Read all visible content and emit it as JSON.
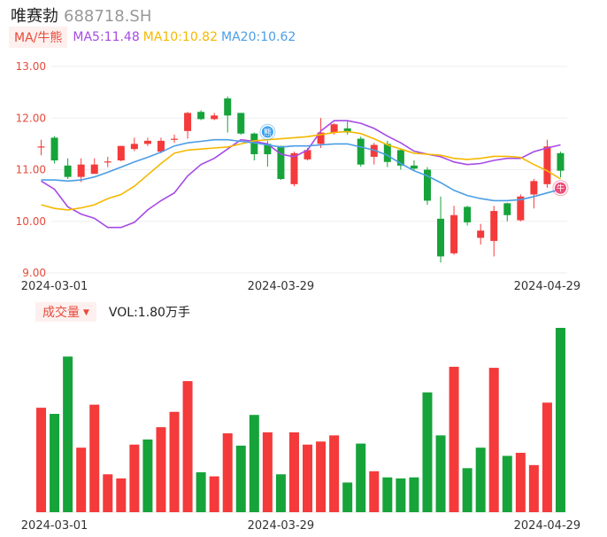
{
  "header": {
    "name": "唯赛勃",
    "code": "688718.SH"
  },
  "ma_legend": {
    "tab_label": "MA/牛熊",
    "items": [
      {
        "label": "MA5:11.48",
        "color": "#a64ae6"
      },
      {
        "label": "MA10:10.82",
        "color": "#f5b800"
      },
      {
        "label": "MA20:10.62",
        "color": "#4b9de6"
      }
    ]
  },
  "volume_legend": {
    "tab_label": "成交量",
    "value_label": "VOL:1.80万手"
  },
  "badges": {
    "bear": "熊",
    "bull": "牛"
  },
  "colors": {
    "up": "#f43a3a",
    "down": "#16a33a",
    "grid": "#eeeeee",
    "axis_text": "#e64a3b",
    "date_text": "#333333"
  },
  "chart_data": [
    {
      "type": "candlestick",
      "title": "",
      "y_ticks": [
        "13.00",
        "12.00",
        "11.00",
        "10.00",
        "9.00"
      ],
      "ylim": [
        9.0,
        13.0
      ],
      "x_ticks": [
        {
          "label": "2024-03-01",
          "index": 1
        },
        {
          "label": "2024-03-29",
          "index": 18
        },
        {
          "label": "2024-04-29",
          "index": 38
        }
      ],
      "candles": [
        {
          "o": 11.45,
          "c": 11.45,
          "h": 11.58,
          "l": 11.28
        },
        {
          "o": 11.62,
          "c": 11.18,
          "h": 11.65,
          "l": 11.12
        },
        {
          "o": 11.08,
          "c": 10.86,
          "h": 11.22,
          "l": 10.82
        },
        {
          "o": 10.86,
          "c": 11.1,
          "h": 11.22,
          "l": 10.76
        },
        {
          "o": 10.92,
          "c": 11.1,
          "h": 11.22,
          "l": 10.92
        },
        {
          "o": 11.16,
          "c": 11.16,
          "h": 11.25,
          "l": 11.05
        },
        {
          "o": 11.18,
          "c": 11.46,
          "h": 11.46,
          "l": 11.16
        },
        {
          "o": 11.4,
          "c": 11.5,
          "h": 11.62,
          "l": 11.36
        },
        {
          "o": 11.5,
          "c": 11.56,
          "h": 11.62,
          "l": 11.46
        },
        {
          "o": 11.35,
          "c": 11.56,
          "h": 11.62,
          "l": 11.32
        },
        {
          "o": 11.6,
          "c": 11.6,
          "h": 11.68,
          "l": 11.52
        },
        {
          "o": 11.75,
          "c": 12.1,
          "h": 12.12,
          "l": 11.6
        },
        {
          "o": 12.12,
          "c": 11.98,
          "h": 12.15,
          "l": 11.96
        },
        {
          "o": 11.98,
          "c": 12.05,
          "h": 12.1,
          "l": 11.96
        },
        {
          "o": 12.38,
          "c": 12.05,
          "h": 12.42,
          "l": 11.72
        },
        {
          "o": 12.1,
          "c": 11.7,
          "h": 12.1,
          "l": 11.68
        },
        {
          "o": 11.7,
          "c": 11.3,
          "h": 11.72,
          "l": 11.18
        },
        {
          "o": 11.5,
          "c": 11.3,
          "h": 11.56,
          "l": 11.06
        },
        {
          "o": 11.46,
          "c": 10.82,
          "h": 11.46,
          "l": 10.8
        },
        {
          "o": 10.72,
          "c": 11.32,
          "h": 11.35,
          "l": 10.68
        },
        {
          "o": 11.2,
          "c": 11.38,
          "h": 11.42,
          "l": 11.18
        },
        {
          "o": 11.5,
          "c": 11.72,
          "h": 12.0,
          "l": 11.42
        },
        {
          "o": 11.72,
          "c": 11.88,
          "h": 11.9,
          "l": 11.68
        },
        {
          "o": 11.8,
          "c": 11.72,
          "h": 11.96,
          "l": 11.68
        },
        {
          "o": 11.6,
          "c": 11.1,
          "h": 11.64,
          "l": 11.06
        },
        {
          "o": 11.25,
          "c": 11.48,
          "h": 11.52,
          "l": 11.1
        },
        {
          "o": 11.5,
          "c": 11.15,
          "h": 11.56,
          "l": 11.05
        },
        {
          "o": 11.38,
          "c": 11.08,
          "h": 11.4,
          "l": 11.0
        },
        {
          "o": 11.08,
          "c": 11.02,
          "h": 11.18,
          "l": 10.98
        },
        {
          "o": 11.0,
          "c": 10.4,
          "h": 11.05,
          "l": 10.32
        },
        {
          "o": 10.05,
          "c": 9.32,
          "h": 10.48,
          "l": 9.2
        },
        {
          "o": 9.38,
          "c": 10.12,
          "h": 10.3,
          "l": 9.35
        },
        {
          "o": 10.28,
          "c": 9.98,
          "h": 10.3,
          "l": 9.92
        },
        {
          "o": 9.68,
          "c": 9.82,
          "h": 9.95,
          "l": 9.55
        },
        {
          "o": 9.62,
          "c": 10.2,
          "h": 10.3,
          "l": 9.32
        },
        {
          "o": 10.35,
          "c": 10.12,
          "h": 10.36,
          "l": 10.0
        },
        {
          "o": 10.02,
          "c": 10.48,
          "h": 10.52,
          "l": 10.0
        },
        {
          "o": 10.52,
          "c": 10.78,
          "h": 10.82,
          "l": 10.25
        },
        {
          "o": 10.72,
          "c": 11.45,
          "h": 11.58,
          "l": 10.65
        },
        {
          "o": 11.32,
          "c": 10.98,
          "h": 11.35,
          "l": 10.85
        }
      ],
      "series": [
        {
          "name": "MA5",
          "color": "#a64ae6",
          "values": [
            10.78,
            10.62,
            10.28,
            10.14,
            10.06,
            9.88,
            9.88,
            9.98,
            10.22,
            10.4,
            10.55,
            10.88,
            11.1,
            11.22,
            11.4,
            11.58,
            11.55,
            11.5,
            11.3,
            11.25,
            11.38,
            11.75,
            11.95,
            11.95,
            11.9,
            11.8,
            11.65,
            11.52,
            11.36,
            11.3,
            11.25,
            11.15,
            11.1,
            11.12,
            11.18,
            11.22,
            11.22,
            11.35,
            11.42,
            11.48
          ]
        },
        {
          "name": "MA10",
          "color": "#f5b800",
          "values": [
            10.32,
            10.25,
            10.22,
            10.26,
            10.32,
            10.44,
            10.52,
            10.68,
            10.9,
            11.12,
            11.32,
            11.38,
            11.4,
            11.42,
            11.44,
            11.5,
            11.56,
            11.58,
            11.6,
            11.62,
            11.64,
            11.68,
            11.72,
            11.74,
            11.7,
            11.6,
            11.48,
            11.4,
            11.32,
            11.3,
            11.28,
            11.22,
            11.2,
            11.22,
            11.26,
            11.26,
            11.24,
            11.1,
            10.98,
            10.82
          ]
        },
        {
          "name": "MA20",
          "color": "#4b9de6",
          "values": [
            10.8,
            10.8,
            10.78,
            10.8,
            10.86,
            10.95,
            11.05,
            11.15,
            11.24,
            11.34,
            11.46,
            11.52,
            11.55,
            11.58,
            11.58,
            11.55,
            11.52,
            11.48,
            11.44,
            11.46,
            11.46,
            11.48,
            11.5,
            11.5,
            11.44,
            11.38,
            11.28,
            11.12,
            10.98,
            10.88,
            10.75,
            10.6,
            10.5,
            10.44,
            10.4,
            10.4,
            10.42,
            10.48,
            10.55,
            10.62
          ]
        }
      ],
      "annotations": [
        {
          "label": "熊",
          "index": 17
        },
        {
          "label": "牛",
          "index": 39
        }
      ]
    },
    {
      "type": "bar",
      "title": "",
      "ylabel": "VOL",
      "x_ticks": [
        "2024-03-01",
        "2024-03-29",
        "2024-04-29"
      ],
      "values": [
        1.02,
        0.96,
        1.52,
        0.63,
        1.05,
        0.37,
        0.33,
        0.66,
        0.71,
        0.83,
        0.98,
        1.28,
        0.39,
        0.35,
        0.77,
        0.65,
        0.95,
        0.78,
        0.37,
        0.78,
        0.66,
        0.69,
        0.75,
        0.29,
        0.67,
        0.4,
        0.34,
        0.33,
        0.34,
        1.17,
        0.75,
        1.42,
        0.43,
        0.63,
        1.41,
        0.55,
        0.58,
        0.46,
        1.07,
        1.8
      ],
      "directions": [
        "up",
        "down",
        "down",
        "up",
        "up",
        "up",
        "up",
        "up",
        "down",
        "up",
        "up",
        "up",
        "down",
        "up",
        "up",
        "down",
        "down",
        "up",
        "down",
        "up",
        "up",
        "up",
        "up",
        "down",
        "down",
        "up",
        "down",
        "down",
        "down",
        "down",
        "down",
        "up",
        "down",
        "down",
        "up",
        "down",
        "up",
        "up",
        "up",
        "down"
      ]
    }
  ]
}
